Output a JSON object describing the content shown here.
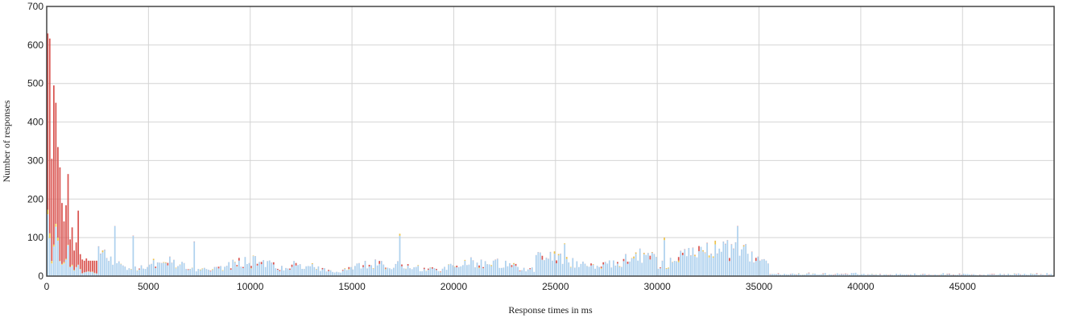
{
  "chart_data": {
    "type": "bar",
    "stacked": true,
    "title": "",
    "xlabel": "Response times in ms",
    "ylabel": "Number of responses",
    "xlim": [
      0,
      49500
    ],
    "ylim": [
      0,
      700
    ],
    "bin_width_ms": 100,
    "grid": true,
    "legend": "none",
    "x_ticks": [
      "0",
      "5000",
      "10000",
      "15000",
      "20000",
      "25000",
      "30000",
      "35000",
      "40000",
      "45000"
    ],
    "y_ticks": [
      "0",
      "100",
      "200",
      "300",
      "400",
      "500",
      "600",
      "700"
    ],
    "series_colors": [
      "#aed1ee",
      "#ecc447",
      "#d9534f"
    ],
    "key_points": [
      {
        "x": 0,
        "total": 630
      },
      {
        "x": 300,
        "total": 495
      },
      {
        "x": 400,
        "total": 450
      },
      {
        "x": 500,
        "total": 335
      },
      {
        "x": 1000,
        "total": 265
      },
      {
        "x": 1500,
        "total": 170
      },
      {
        "x": 3300,
        "total": 130
      },
      {
        "x": 4200,
        "total": 105
      },
      {
        "x": 7200,
        "total": 90
      },
      {
        "x": 17300,
        "total": 110
      },
      {
        "x": 25400,
        "total": 85
      },
      {
        "x": 30300,
        "total": 100
      },
      {
        "x": 33900,
        "total": 130
      },
      {
        "x": 35000,
        "total": 40
      },
      {
        "x": 40000,
        "total": 5
      },
      {
        "x": 49000,
        "total": 3
      }
    ]
  }
}
